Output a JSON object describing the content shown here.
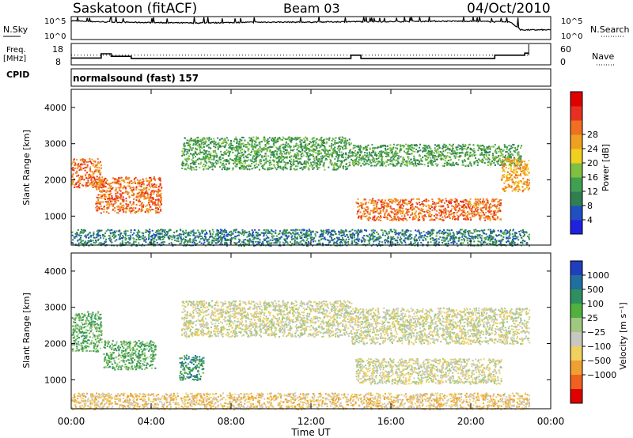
{
  "header": {
    "station": "Saskatoon (fitACF)",
    "beam": "Beam 03",
    "date": "04/Oct/2010"
  },
  "side_labels": {
    "nsky": "N.Sky",
    "nsearch": "N.Search",
    "freq_line1": "Freq.",
    "freq_line2": "[MHz]",
    "nave": "Nave",
    "cpid": "CPID"
  },
  "mode_label": "normalsound (fast) 157",
  "noise_axis": {
    "ticks_left": [
      "10^5",
      "10^0"
    ],
    "ticks_right": [
      "10^5",
      "10^0"
    ]
  },
  "freq_axis": {
    "ticks_left": [
      "18",
      "8"
    ],
    "ticks_right": [
      "60",
      "0"
    ]
  },
  "power_panel": {
    "ylabel": "Slant Range [km]",
    "yticks": [
      1000,
      2000,
      3000,
      4000
    ],
    "colorbar_label": "Power [dB]",
    "colorbar_ticks": [
      "4",
      "8",
      "12",
      "16",
      "20",
      "24",
      "28"
    ],
    "colors": [
      "#2020e0",
      "#1f4fc0",
      "#2f7f50",
      "#40a050",
      "#80c040",
      "#f0d020",
      "#f0a020",
      "#f07020",
      "#e83020",
      "#e00000"
    ]
  },
  "velocity_panel": {
    "ylabel": "Slant Range [km]",
    "yticks": [
      1000,
      2000,
      3000,
      4000
    ],
    "colorbar_label": "Velocity [m s⁻¹]",
    "colorbar_ticks": [
      "1000",
      "500",
      "100",
      "25",
      "−25",
      "−100",
      "−500",
      "−1000"
    ],
    "colors": [
      "#1f3fbf",
      "#1f6f9f",
      "#2f8f5f",
      "#50b040",
      "#a0c880",
      "#c8c8c0",
      "#f0d060",
      "#f0a030",
      "#f06020",
      "#e00000"
    ]
  },
  "x_axis": {
    "label": "Time UT",
    "ticks": [
      "00:00",
      "04:00",
      "08:00",
      "12:00",
      "16:00",
      "20:00",
      "00:00"
    ]
  },
  "chart_data": [
    {
      "type": "line",
      "name_left": "N.Sky",
      "name_right": "N.Search",
      "x_unit": "hours UT",
      "xlim": [
        0,
        24
      ],
      "ylim": [
        "10^0",
        "10^5"
      ],
      "series": [
        {
          "x": [
            0,
            0.5,
            2,
            4,
            6,
            8,
            10,
            12,
            14,
            16,
            18,
            20,
            22,
            22.5,
            23,
            24
          ],
          "values": [
            4.1,
            4.0,
            3.8,
            3.7,
            3.6,
            3.7,
            3.8,
            3.8,
            3.9,
            3.9,
            4.0,
            4.0,
            3.8,
            2.1,
            2.1,
            2.1
          ]
        }
      ]
    },
    {
      "type": "line",
      "name_left": "Freq. [MHz]",
      "name_right": "Nave",
      "xlim": [
        0,
        24
      ],
      "ylim": [
        8,
        18
      ],
      "series": [
        {
          "x": [
            0,
            1.5,
            1.5,
            2.0,
            2.0,
            3.0,
            3.0,
            14.0,
            14.0,
            14.5,
            14.5,
            21.2,
            21.2,
            22.7,
            22.7,
            22.9
          ],
          "values": [
            11.2,
            11.2,
            13.2,
            13.2,
            12.0,
            12.0,
            11.0,
            11.0,
            12.5,
            12.5,
            11.0,
            11.0,
            12.5,
            12.5,
            13.5,
            13.5
          ]
        },
        {
          "x": [
            0,
            22.9
          ],
          "values": [
            12.5,
            12.5
          ]
        }
      ]
    },
    {
      "type": "heatmap",
      "ylabel": "Slant Range [km]",
      "xlabel": "Time UT",
      "xlim": [
        0,
        24
      ],
      "ylim": [
        200,
        4500
      ],
      "colorbar": "Power [dB]",
      "cbar_ticks": [
        4,
        8,
        12,
        16,
        20,
        24,
        28
      ],
      "regions": [
        {
          "t": [
            0,
            1.5
          ],
          "r": [
            1800,
            2600
          ],
          "power": 24
        },
        {
          "t": [
            1.2,
            4.5
          ],
          "r": [
            1100,
            2100
          ],
          "power": 26
        },
        {
          "t": [
            5.5,
            14
          ],
          "r": [
            2300,
            3200
          ],
          "power": 12
        },
        {
          "t": [
            14.2,
            21.5
          ],
          "r": [
            900,
            1500
          ],
          "power": 26
        },
        {
          "t": [
            14,
            22.5
          ],
          "r": [
            2400,
            3000
          ],
          "power": 10
        },
        {
          "t": [
            21.5,
            22.9
          ],
          "r": [
            1700,
            2600
          ],
          "power": 22
        },
        {
          "t": [
            0,
            22.9
          ],
          "r": [
            200,
            650
          ],
          "power": 8
        }
      ]
    },
    {
      "type": "heatmap",
      "ylabel": "Slant Range [km]",
      "xlabel": "Time UT",
      "xlim": [
        0,
        24
      ],
      "ylim": [
        200,
        4500
      ],
      "colorbar": "Velocity [m s-1]",
      "cbar_ticks": [
        1000,
        500,
        100,
        25,
        -25,
        -100,
        -500,
        -1000
      ],
      "regions": [
        {
          "t": [
            0,
            1.5
          ],
          "r": [
            1800,
            2900
          ],
          "velocity": 100
        },
        {
          "t": [
            1.6,
            4.2
          ],
          "r": [
            1300,
            2100
          ],
          "velocity": 300
        },
        {
          "t": [
            5.4,
            6.6
          ],
          "r": [
            1000,
            1700
          ],
          "velocity": 700
        },
        {
          "t": [
            5.5,
            14
          ],
          "r": [
            2200,
            3200
          ],
          "velocity": 0
        },
        {
          "t": [
            14.2,
            21.5
          ],
          "r": [
            900,
            1600
          ],
          "velocity": 0
        },
        {
          "t": [
            14,
            22.9
          ],
          "r": [
            2000,
            3000
          ],
          "velocity": 0
        },
        {
          "t": [
            0,
            22.9
          ],
          "r": [
            200,
            650
          ],
          "velocity": -100
        }
      ]
    }
  ]
}
